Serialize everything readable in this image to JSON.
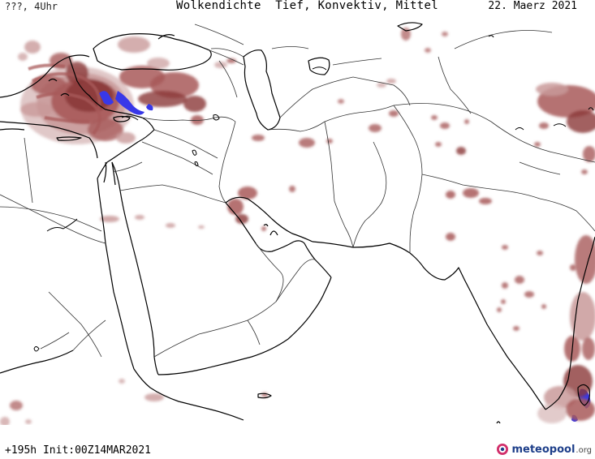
{
  "header": {
    "time_label": "???, 4Uhr",
    "title": "Wolkendichte  Tief, Konvektiv, Mittel",
    "date": "22. Maerz 2021"
  },
  "footer": {
    "forecast_info": "+195h Init:00Z14MAR2021",
    "brand_name": "meteopool",
    "brand_tld": ".org"
  },
  "colors": {
    "background": "#ffffff",
    "coastline": "#000000",
    "border": "#333333",
    "cloud_dark": "#8b3a3a",
    "cloud_mid": "#a85a5a",
    "cloud_light": "#c99a9a",
    "cloud_pale": "#ddc2c2",
    "convective": "#3838e8"
  }
}
